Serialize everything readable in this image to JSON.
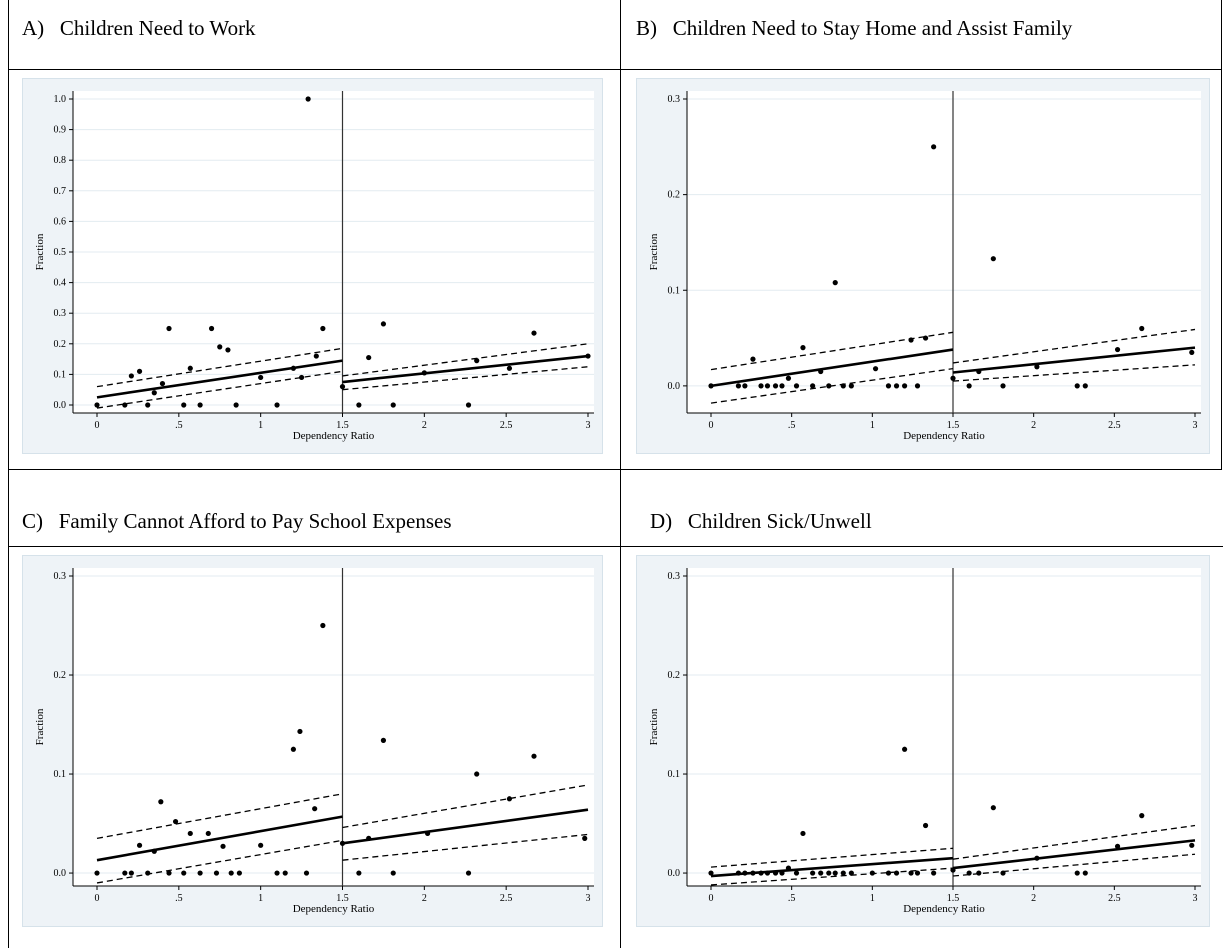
{
  "panels": [
    {
      "letter": "A)",
      "title": "Children Need to Work"
    },
    {
      "letter": "B)",
      "title": "Children Need to Stay Home and Assist Family"
    },
    {
      "letter": "C)",
      "title": "Family Cannot Afford to Pay School Expenses"
    },
    {
      "letter": "D)",
      "title": "Children Sick/Unwell"
    }
  ],
  "chart_data": [
    {
      "type": "scatter",
      "title": "Children Need to Work",
      "xlabel": "Dependency Ratio",
      "ylabel": "Fraction",
      "xlim": [
        0,
        3
      ],
      "ylim": [
        0,
        1.0
      ],
      "xticks": [
        0,
        0.5,
        1,
        1.5,
        2,
        2.5,
        3
      ],
      "xtick_labels": [
        "0",
        ".5",
        "1",
        "1.5",
        "2",
        "2.5",
        "3"
      ],
      "yticks": [
        0,
        0.1,
        0.2,
        0.3,
        0.4,
        0.5,
        0.6,
        0.7,
        0.8,
        0.9,
        1.0
      ],
      "ytick_labels": [
        "0.0",
        "0.1",
        "0.2",
        "0.3",
        "0.4",
        "0.5",
        "0.6",
        "0.7",
        "0.8",
        "0.9",
        "1.0"
      ],
      "cutoff": 1.5,
      "points": [
        [
          0,
          0
        ],
        [
          0.17,
          0
        ],
        [
          0.21,
          0.095
        ],
        [
          0.26,
          0.11
        ],
        [
          0.31,
          0
        ],
        [
          0.35,
          0.04
        ],
        [
          0.4,
          0.07
        ],
        [
          0.44,
          0.25
        ],
        [
          0.53,
          0
        ],
        [
          0.57,
          0.12
        ],
        [
          0.63,
          0
        ],
        [
          0.7,
          0.25
        ],
        [
          0.75,
          0.19
        ],
        [
          0.8,
          0.18
        ],
        [
          0.85,
          0
        ],
        [
          1.0,
          0.09
        ],
        [
          1.1,
          0
        ],
        [
          1.2,
          0.12
        ],
        [
          1.25,
          0.09
        ],
        [
          1.29,
          1.0
        ],
        [
          1.34,
          0.16
        ],
        [
          1.38,
          0.25
        ],
        [
          1.5,
          0.06
        ],
        [
          1.6,
          0
        ],
        [
          1.66,
          0.155
        ],
        [
          1.75,
          0.265
        ],
        [
          1.81,
          0
        ],
        [
          2.0,
          0.105
        ],
        [
          2.27,
          0
        ],
        [
          2.32,
          0.145
        ],
        [
          2.52,
          0.12
        ],
        [
          2.67,
          0.235
        ],
        [
          3.0,
          0.16
        ]
      ],
      "fit_left": {
        "x": [
          0,
          1.5
        ],
        "y": [
          0.025,
          0.145
        ],
        "ci_lo": [
          -0.01,
          0.11
        ],
        "ci_hi": [
          0.06,
          0.185
        ]
      },
      "fit_right": {
        "x": [
          1.5,
          3
        ],
        "y": [
          0.075,
          0.16
        ],
        "ci_lo": [
          0.05,
          0.125
        ],
        "ci_hi": [
          0.095,
          0.2
        ]
      }
    },
    {
      "type": "scatter",
      "title": "Children Need to Stay Home and Assist Family",
      "xlabel": "Dependency Ratio",
      "ylabel": "Fraction",
      "xlim": [
        0,
        3
      ],
      "ylim": [
        -0.02,
        0.3
      ],
      "xticks": [
        0,
        0.5,
        1,
        1.5,
        2,
        2.5,
        3
      ],
      "xtick_labels": [
        "0",
        ".5",
        "1",
        "1.5",
        "2",
        "2.5",
        "3"
      ],
      "yticks": [
        0,
        0.1,
        0.2,
        0.3
      ],
      "ytick_labels": [
        "0.0",
        "0.1",
        "0.2",
        "0.3"
      ],
      "cutoff": 1.5,
      "points": [
        [
          0,
          0
        ],
        [
          0.17,
          0
        ],
        [
          0.21,
          0
        ],
        [
          0.26,
          0.028
        ],
        [
          0.31,
          0
        ],
        [
          0.35,
          0
        ],
        [
          0.4,
          0
        ],
        [
          0.44,
          0
        ],
        [
          0.48,
          0.008
        ],
        [
          0.53,
          0
        ],
        [
          0.57,
          0.04
        ],
        [
          0.63,
          0
        ],
        [
          0.68,
          0.015
        ],
        [
          0.73,
          0
        ],
        [
          0.77,
          0.108
        ],
        [
          0.82,
          0
        ],
        [
          0.87,
          0
        ],
        [
          1.02,
          0.018
        ],
        [
          1.1,
          0
        ],
        [
          1.15,
          0
        ],
        [
          1.2,
          0
        ],
        [
          1.24,
          0.048
        ],
        [
          1.28,
          0
        ],
        [
          1.33,
          0.05
        ],
        [
          1.38,
          0.25
        ],
        [
          1.5,
          0.008
        ],
        [
          1.6,
          0
        ],
        [
          1.66,
          0.015
        ],
        [
          1.75,
          0.133
        ],
        [
          1.81,
          0
        ],
        [
          2.02,
          0.02
        ],
        [
          2.27,
          0
        ],
        [
          2.32,
          0
        ],
        [
          2.52,
          0.038
        ],
        [
          2.67,
          0.06
        ],
        [
          2.98,
          0.035
        ]
      ],
      "fit_left": {
        "x": [
          0,
          1.5
        ],
        "y": [
          0,
          0.038
        ],
        "ci_lo": [
          -0.018,
          0.018
        ],
        "ci_hi": [
          0.017,
          0.056
        ]
      },
      "fit_right": {
        "x": [
          1.5,
          3
        ],
        "y": [
          0.014,
          0.04
        ],
        "ci_lo": [
          0.005,
          0.022
        ],
        "ci_hi": [
          0.024,
          0.059
        ]
      }
    },
    {
      "type": "scatter",
      "title": "Family Cannot Afford to Pay School Expenses",
      "xlabel": "Dependency Ratio",
      "ylabel": "Fraction",
      "xlim": [
        0,
        3
      ],
      "ylim": [
        -0.005,
        0.3
      ],
      "xticks": [
        0,
        0.5,
        1,
        1.5,
        2,
        2.5,
        3
      ],
      "xtick_labels": [
        "0",
        ".5",
        "1",
        "1.5",
        "2",
        "2.5",
        "3"
      ],
      "yticks": [
        0,
        0.1,
        0.2,
        0.3
      ],
      "ytick_labels": [
        "0.0",
        "0.1",
        "0.2",
        "0.3"
      ],
      "cutoff": 1.5,
      "points": [
        [
          0,
          0
        ],
        [
          0.17,
          0
        ],
        [
          0.21,
          0
        ],
        [
          0.26,
          0.028
        ],
        [
          0.31,
          0
        ],
        [
          0.35,
          0.022
        ],
        [
          0.39,
          0.072
        ],
        [
          0.44,
          0
        ],
        [
          0.48,
          0.052
        ],
        [
          0.53,
          0
        ],
        [
          0.57,
          0.04
        ],
        [
          0.63,
          0
        ],
        [
          0.68,
          0.04
        ],
        [
          0.73,
          0
        ],
        [
          0.77,
          0.027
        ],
        [
          0.82,
          0
        ],
        [
          0.87,
          0
        ],
        [
          1.0,
          0.028
        ],
        [
          1.1,
          0
        ],
        [
          1.15,
          0
        ],
        [
          1.2,
          0.125
        ],
        [
          1.24,
          0.143
        ],
        [
          1.28,
          0
        ],
        [
          1.33,
          0.065
        ],
        [
          1.38,
          0.25
        ],
        [
          1.5,
          0.03
        ],
        [
          1.6,
          0
        ],
        [
          1.66,
          0.035
        ],
        [
          1.75,
          0.134
        ],
        [
          1.81,
          0
        ],
        [
          2.02,
          0.04
        ],
        [
          2.27,
          0
        ],
        [
          2.32,
          0.1
        ],
        [
          2.52,
          0.075
        ],
        [
          2.67,
          0.118
        ],
        [
          2.98,
          0.035
        ]
      ],
      "fit_left": {
        "x": [
          0,
          1.5
        ],
        "y": [
          0.013,
          0.057
        ],
        "ci_lo": [
          -0.01,
          0.033
        ],
        "ci_hi": [
          0.035,
          0.08
        ]
      },
      "fit_right": {
        "x": [
          1.5,
          3
        ],
        "y": [
          0.03,
          0.064
        ],
        "ci_lo": [
          0.013,
          0.039
        ],
        "ci_hi": [
          0.046,
          0.089
        ]
      }
    },
    {
      "type": "scatter",
      "title": "Children Sick/Unwell",
      "xlabel": "Dependency Ratio",
      "ylabel": "Fraction",
      "xlim": [
        0,
        3
      ],
      "ylim": [
        -0.005,
        0.3
      ],
      "xticks": [
        0,
        0.5,
        1,
        1.5,
        2,
        2.5,
        3
      ],
      "xtick_labels": [
        "0",
        ".5",
        "1",
        "1.5",
        "2",
        "2.5",
        "3"
      ],
      "yticks": [
        0,
        0.1,
        0.2,
        0.3
      ],
      "ytick_labels": [
        "0.0",
        "0.1",
        "0.2",
        "0.3"
      ],
      "cutoff": 1.5,
      "points": [
        [
          0,
          0
        ],
        [
          0.17,
          0
        ],
        [
          0.21,
          0
        ],
        [
          0.26,
          0
        ],
        [
          0.31,
          0
        ],
        [
          0.35,
          0
        ],
        [
          0.4,
          0
        ],
        [
          0.44,
          0
        ],
        [
          0.48,
          0.005
        ],
        [
          0.53,
          0
        ],
        [
          0.57,
          0.04
        ],
        [
          0.63,
          0
        ],
        [
          0.68,
          0
        ],
        [
          0.73,
          0
        ],
        [
          0.77,
          0
        ],
        [
          0.82,
          0
        ],
        [
          0.87,
          0
        ],
        [
          1.0,
          0
        ],
        [
          1.1,
          0
        ],
        [
          1.15,
          0
        ],
        [
          1.2,
          0.125
        ],
        [
          1.24,
          0
        ],
        [
          1.28,
          0
        ],
        [
          1.33,
          0.048
        ],
        [
          1.38,
          0
        ],
        [
          1.5,
          0.003
        ],
        [
          1.6,
          0
        ],
        [
          1.66,
          0
        ],
        [
          1.75,
          0.066
        ],
        [
          1.81,
          0
        ],
        [
          2.02,
          0.015
        ],
        [
          2.27,
          0
        ],
        [
          2.32,
          0
        ],
        [
          2.52,
          0.027
        ],
        [
          2.67,
          0.058
        ],
        [
          2.98,
          0.028
        ]
      ],
      "fit_left": {
        "x": [
          0,
          1.5
        ],
        "y": [
          -0.003,
          0.015
        ],
        "ci_lo": [
          -0.012,
          0.005
        ],
        "ci_hi": [
          0.006,
          0.025
        ]
      },
      "fit_right": {
        "x": [
          1.5,
          3
        ],
        "y": [
          0.005,
          0.033
        ],
        "ci_lo": [
          -0.003,
          0.019
        ],
        "ci_hi": [
          0.014,
          0.048
        ]
      }
    }
  ]
}
